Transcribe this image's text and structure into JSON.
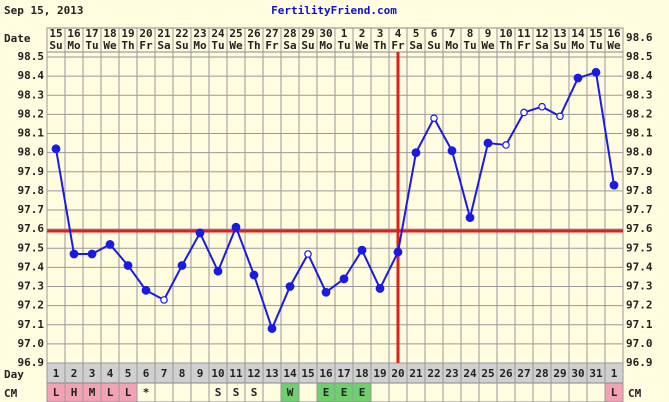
{
  "chart_data": {
    "type": "line",
    "header_date": "Sep 15, 2013",
    "site": "FertilityFriend.com",
    "row_labels": {
      "date": "Date",
      "day": "Day",
      "cm": "CM"
    },
    "categories": [
      "15",
      "16",
      "17",
      "18",
      "19",
      "20",
      "21",
      "22",
      "23",
      "24",
      "25",
      "26",
      "27",
      "28",
      "29",
      "30",
      "1",
      "2",
      "3",
      "4",
      "5",
      "6",
      "7",
      "8",
      "9",
      "10",
      "11",
      "12",
      "13",
      "14",
      "15",
      "16"
    ],
    "weekdays": [
      "Su",
      "Mo",
      "Tu",
      "We",
      "Th",
      "Fr",
      "Sa",
      "Su",
      "Mo",
      "Tu",
      "We",
      "Th",
      "Fr",
      "Sa",
      "Su",
      "Mo",
      "Tu",
      "We",
      "Th",
      "Fr",
      "Sa",
      "Su",
      "Mo",
      "Tu",
      "We",
      "Th",
      "Fr",
      "Sa",
      "Su",
      "Mo",
      "Tu",
      "We"
    ],
    "cycle_days": [
      1,
      2,
      3,
      4,
      5,
      6,
      7,
      8,
      9,
      10,
      11,
      12,
      13,
      14,
      15,
      16,
      17,
      18,
      19,
      20,
      21,
      22,
      23,
      24,
      25,
      26,
      27,
      28,
      29,
      30,
      31,
      1
    ],
    "cm": [
      "L",
      "H",
      "M",
      "L",
      "L",
      "*",
      null,
      null,
      null,
      "S",
      "S",
      "S",
      null,
      "W",
      null,
      "E",
      "E",
      "E",
      null,
      null,
      null,
      null,
      null,
      null,
      null,
      null,
      null,
      null,
      null,
      null,
      null,
      "L"
    ],
    "cm_colors": {
      "L": "#f2a3b3",
      "H": "#f2a3b3",
      "M": "#f2a3b3",
      "W": "#6fcf6f",
      "E": "#6fcf6f"
    },
    "values": [
      98.02,
      97.47,
      97.47,
      97.52,
      97.41,
      97.28,
      97.23,
      97.41,
      97.58,
      97.38,
      97.61,
      97.36,
      97.08,
      97.3,
      97.47,
      97.27,
      97.34,
      97.49,
      97.29,
      97.48,
      98.0,
      98.18,
      98.01,
      97.66,
      98.05,
      98.04,
      98.21,
      98.24,
      98.19,
      98.39,
      98.42,
      97.83
    ],
    "open": [
      false,
      false,
      false,
      false,
      false,
      false,
      true,
      false,
      false,
      false,
      false,
      false,
      false,
      false,
      true,
      false,
      false,
      false,
      false,
      false,
      false,
      true,
      false,
      false,
      false,
      true,
      true,
      true,
      true,
      false,
      false,
      false
    ],
    "color": "#1a1ae6",
    "coverline": 97.59,
    "ovulation_day": 20,
    "marker_color": "#e02020",
    "ylim": [
      96.9,
      98.6
    ],
    "yticks": [
      {
        "value": 96.9,
        "label": "96.9"
      },
      {
        "value": 97.0,
        "label": "97.0"
      },
      {
        "value": 97.1,
        "label": "97.1"
      },
      {
        "value": 97.2,
        "label": "97.2"
      },
      {
        "value": 97.3,
        "label": "97.3"
      },
      {
        "value": 97.4,
        "label": "97.4"
      },
      {
        "value": 97.5,
        "label": "97.5"
      },
      {
        "value": 97.6,
        "label": "97.6"
      },
      {
        "value": 97.7,
        "label": "97.7"
      },
      {
        "value": 97.8,
        "label": "97.8"
      },
      {
        "value": 97.9,
        "label": "97.9"
      },
      {
        "value": 98.0,
        "label": "98.0"
      },
      {
        "value": 98.1,
        "label": "98.1"
      },
      {
        "value": 98.2,
        "label": "98.2"
      },
      {
        "value": 98.3,
        "label": "98.3"
      },
      {
        "value": 98.4,
        "label": "98.4"
      },
      {
        "value": 98.5,
        "label": "98.5"
      },
      {
        "value": 98.6,
        "label": "98.6"
      }
    ],
    "grid": true
  }
}
